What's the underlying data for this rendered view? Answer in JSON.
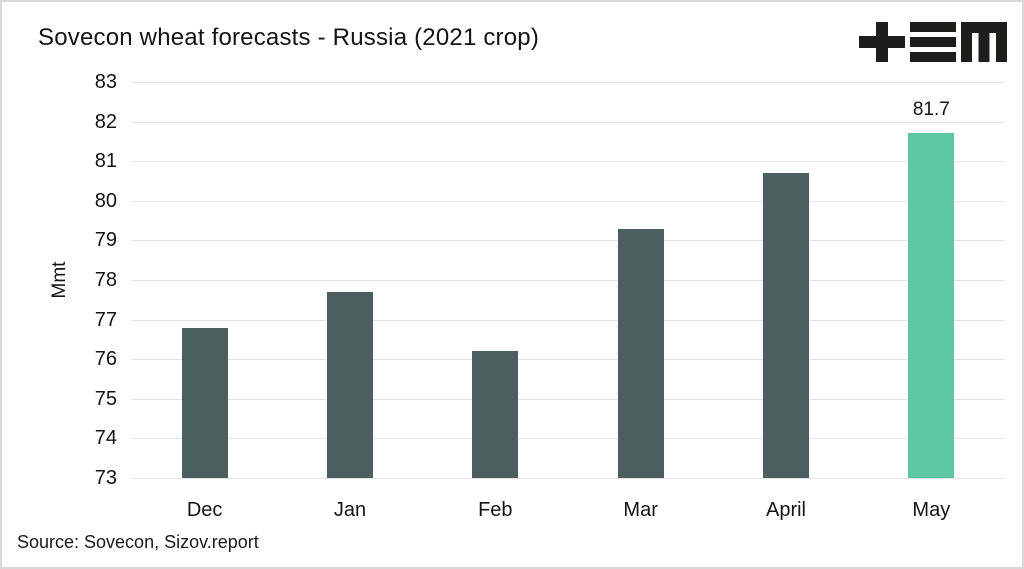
{
  "title": "Sovecon wheat forecasts - Russia (2021 crop)",
  "source": "Source: Sovecon, Sizov.report",
  "logo": {
    "name": "tem-logo",
    "color": "#1d1d1b"
  },
  "colors": {
    "background": "#ffffff",
    "border": "#d8d8d8",
    "gridline": "#e2e2e2",
    "text": "#141414",
    "bar_default": "#4d5e5f",
    "bar_highlight": "#5fc6a3"
  },
  "chart_data": {
    "type": "bar",
    "title": "Sovecon wheat forecasts - Russia (2021 crop)",
    "categories": [
      "Dec",
      "Jan",
      "Feb",
      "Mar",
      "April",
      "May"
    ],
    "values": [
      76.8,
      77.7,
      76.2,
      79.3,
      80.7,
      81.7
    ],
    "highlight_index": 5,
    "xlabel": "",
    "ylabel": "Mmt",
    "ylim": [
      73,
      83
    ],
    "yticks": [
      "83",
      "82",
      "81",
      "80",
      "79",
      "78",
      "77",
      "76",
      "75",
      "74",
      "73"
    ],
    "grid": true,
    "legend": "none",
    "annotations": [
      {
        "index": 5,
        "text": "81.7"
      }
    ]
  }
}
